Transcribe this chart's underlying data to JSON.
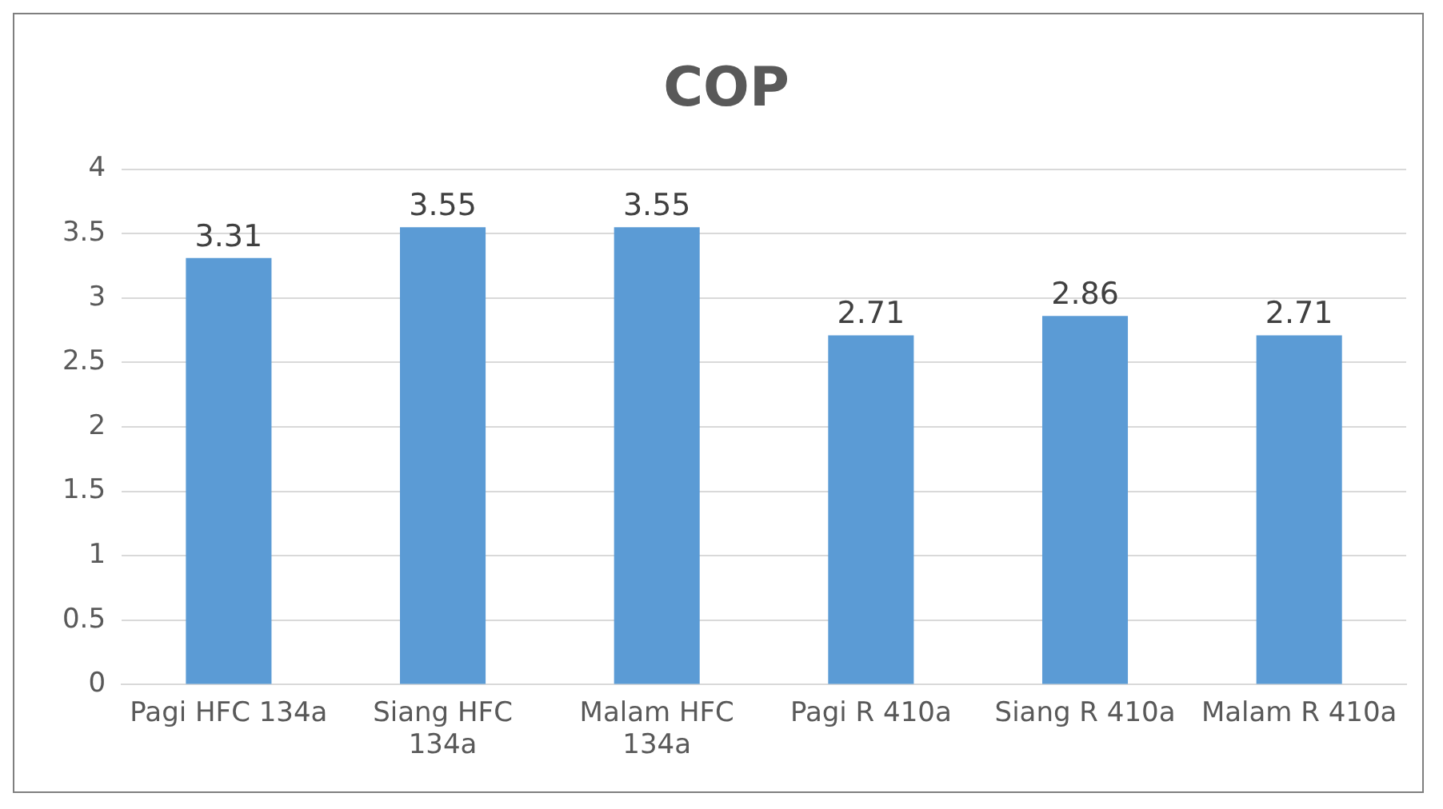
{
  "chart_data": {
    "type": "bar",
    "title": "COP",
    "categories": [
      "Pagi HFC 134a",
      "Siang HFC 134a",
      "Malam HFC 134a",
      "Pagi R 410a",
      "Siang R 410a",
      "Malam R 410a"
    ],
    "values": [
      3.31,
      3.55,
      3.55,
      2.71,
      2.86,
      2.71
    ],
    "color": "#5b9bd5",
    "ylim": [
      0,
      4
    ],
    "yticks": [
      0,
      0.5,
      1,
      1.5,
      2,
      2.5,
      3,
      3.5,
      4
    ],
    "grid": "y",
    "data_labels": true
  }
}
